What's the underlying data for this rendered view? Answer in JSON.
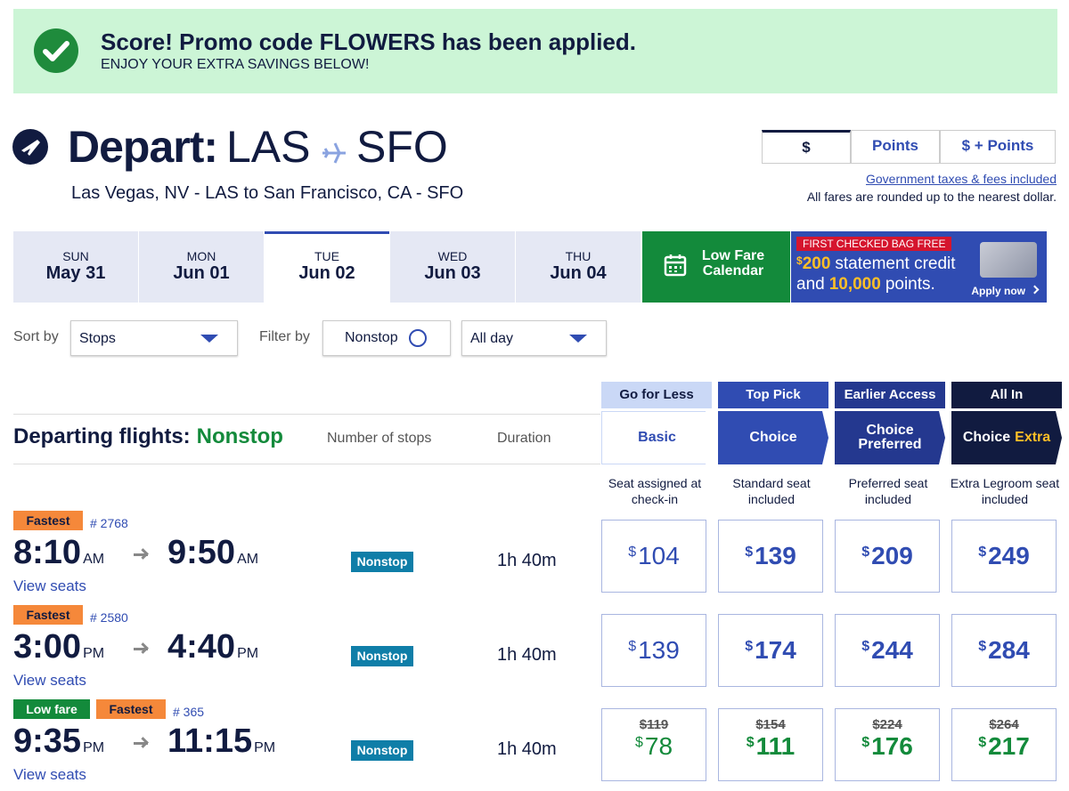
{
  "banner": {
    "title": "Score! Promo code FLOWERS has been applied.",
    "subtitle": "ENJOY YOUR EXTRA SAVINGS BELOW!"
  },
  "header": {
    "label": "Depart:",
    "from": "LAS",
    "to": "SFO",
    "route": "Las Vegas, NV - LAS to San Francisco, CA - SFO"
  },
  "currency_tabs": [
    "$",
    "Points",
    "$ + Points"
  ],
  "tax_link": "Government taxes & fees included",
  "tax_note": "All fares are rounded up to the nearest dollar.",
  "dates": [
    {
      "day": "SUN",
      "date": "May 31"
    },
    {
      "day": "MON",
      "date": "Jun 01"
    },
    {
      "day": "TUE",
      "date": "Jun 02"
    },
    {
      "day": "WED",
      "date": "Jun 03"
    },
    {
      "day": "THU",
      "date": "Jun 04"
    }
  ],
  "selected_date": 2,
  "low_fare_calendar": "Low Fare Calendar",
  "promo": {
    "badge": "FIRST CHECKED BAG FREE",
    "credit_symbol": "$",
    "credit": "200",
    "credit_text": "statement credit",
    "and": "and",
    "points": "10,000",
    "points_text": "points.",
    "cta": "Apply now"
  },
  "filters": {
    "sort_label": "Sort by",
    "sort_value": "Stops",
    "filter_label": "Filter by",
    "nonstop": "Nonstop",
    "time": "All day"
  },
  "table": {
    "title": "Departing flights:",
    "title_filter": "Nonstop",
    "stops_col": "Number of stops",
    "duration_col": "Duration"
  },
  "currency": "$",
  "fares": [
    {
      "tag": "Go for Less",
      "name": "Basic",
      "desc": "Seat assigned at check-in"
    },
    {
      "tag": "Top Pick",
      "name": "Choice",
      "desc": "Standard seat included"
    },
    {
      "tag": "Earlier Access",
      "name": "Choice Preferred",
      "desc": "Preferred seat included"
    },
    {
      "tag": "All In",
      "name": "Choice",
      "name_extra": "Extra",
      "desc": "Extra Legroom seat included"
    }
  ],
  "flights": [
    {
      "badges": [
        {
          "label": "Fastest",
          "color": "#f5883a"
        }
      ],
      "number": "# 2768",
      "depart": {
        "time": "8:10",
        "period": "AM"
      },
      "arrive": {
        "time": "9:50",
        "period": "AM"
      },
      "seats": "View seats",
      "stops": "Nonstop",
      "duration": "1h 40m",
      "prices": [
        {
          "price": 104
        },
        {
          "price": 139
        },
        {
          "price": 209
        },
        {
          "price": 249
        }
      ]
    },
    {
      "badges": [
        {
          "label": "Fastest",
          "color": "#f5883a"
        }
      ],
      "number": "# 2580",
      "depart": {
        "time": "3:00",
        "period": "PM"
      },
      "arrive": {
        "time": "4:40",
        "period": "PM"
      },
      "seats": "View seats",
      "stops": "Nonstop",
      "duration": "1h 40m",
      "prices": [
        {
          "price": 139
        },
        {
          "price": 174
        },
        {
          "price": 244
        },
        {
          "price": 284
        }
      ]
    },
    {
      "badges": [
        {
          "label": "Low fare",
          "color": "#138a3b"
        },
        {
          "label": "Fastest",
          "color": "#f5883a"
        }
      ],
      "number": "# 365",
      "depart": {
        "time": "9:35",
        "period": "PM"
      },
      "arrive": {
        "time": "11:15",
        "period": "PM"
      },
      "seats": "View seats",
      "stops": "Nonstop",
      "duration": "1h 40m",
      "prices": [
        {
          "was": 119,
          "price": 78
        },
        {
          "was": 154,
          "price": 111
        },
        {
          "was": 224,
          "price": 176
        },
        {
          "was": 264,
          "price": 217
        }
      ]
    }
  ]
}
